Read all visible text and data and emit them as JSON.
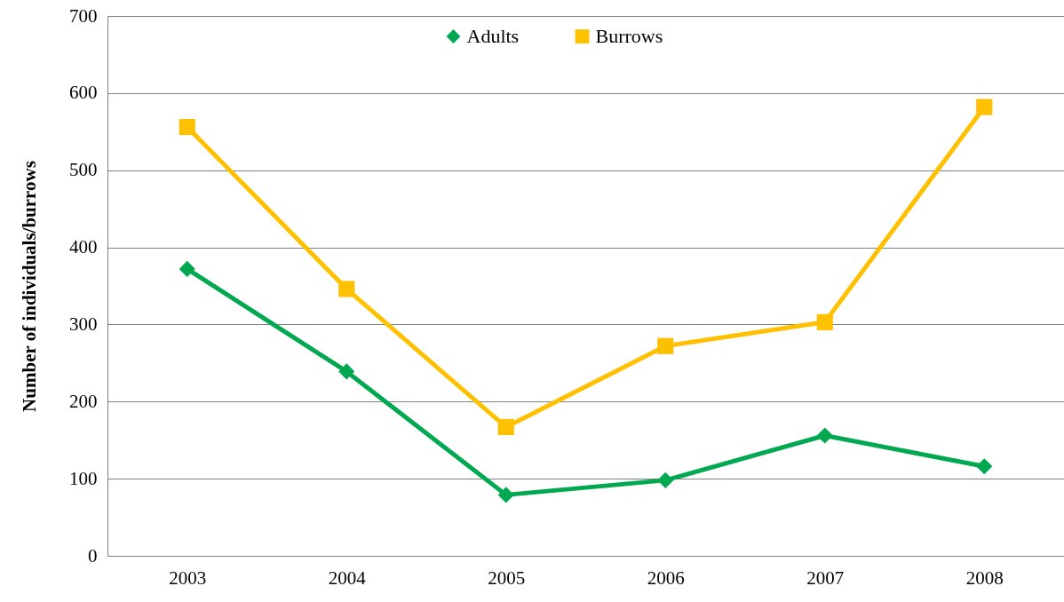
{
  "chart_data": {
    "type": "line",
    "ylabel": "Number of individuals/burrows",
    "categories": [
      "2003",
      "2004",
      "2005",
      "2006",
      "2007",
      "2008"
    ],
    "series": [
      {
        "name": "Adults",
        "color": "#00a84f",
        "marker": "diamond",
        "values": [
          372,
          239,
          79,
          98,
          156,
          116
        ]
      },
      {
        "name": "Burrows",
        "color": "#ffc000",
        "marker": "square",
        "values": [
          556,
          346,
          167,
          272,
          303,
          582
        ]
      }
    ],
    "ylim": [
      0,
      700
    ],
    "yticks": [
      0,
      100,
      200,
      300,
      400,
      500,
      600,
      700
    ],
    "grid": "y",
    "legend": "top",
    "line_style": "solid"
  }
}
